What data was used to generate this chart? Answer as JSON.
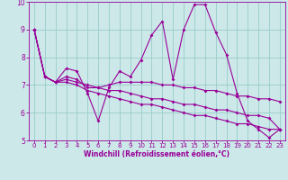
{
  "xlabel": "Windchill (Refroidissement éolien,°C)",
  "ylabel": "",
  "bg_color": "#cce8e8",
  "line_color": "#990099",
  "grid_color": "#99cccc",
  "xlim": [
    -0.5,
    23.5
  ],
  "ylim": [
    5,
    10
  ],
  "yticks": [
    5,
    6,
    7,
    8,
    9,
    10
  ],
  "xticks": [
    0,
    1,
    2,
    3,
    4,
    5,
    6,
    7,
    8,
    9,
    10,
    11,
    12,
    13,
    14,
    15,
    16,
    17,
    18,
    19,
    20,
    21,
    22,
    23
  ],
  "series": [
    [
      9.0,
      7.3,
      7.1,
      7.6,
      7.5,
      6.7,
      5.7,
      6.9,
      7.5,
      7.3,
      7.9,
      8.8,
      9.3,
      7.2,
      9.0,
      9.9,
      9.9,
      8.9,
      8.1,
      6.7,
      5.7,
      5.4,
      5.1,
      5.4
    ],
    [
      9.0,
      7.3,
      7.1,
      7.3,
      7.2,
      6.9,
      6.9,
      7.0,
      7.1,
      7.1,
      7.1,
      7.1,
      7.0,
      7.0,
      6.9,
      6.9,
      6.8,
      6.8,
      6.7,
      6.6,
      6.6,
      6.5,
      6.5,
      6.4
    ],
    [
      9.0,
      7.3,
      7.1,
      7.1,
      7.0,
      6.8,
      6.7,
      6.6,
      6.5,
      6.4,
      6.3,
      6.3,
      6.2,
      6.1,
      6.0,
      5.9,
      5.9,
      5.8,
      5.7,
      5.6,
      5.6,
      5.5,
      5.4,
      5.4
    ],
    [
      9.0,
      7.3,
      7.1,
      7.2,
      7.1,
      7.0,
      6.9,
      6.8,
      6.8,
      6.7,
      6.6,
      6.5,
      6.5,
      6.4,
      6.3,
      6.3,
      6.2,
      6.1,
      6.1,
      6.0,
      5.9,
      5.9,
      5.8,
      5.4
    ]
  ],
  "xlabel_fontsize": 5.5,
  "tick_fontsize": 5.0,
  "linewidth": 0.8,
  "markersize": 2.0
}
